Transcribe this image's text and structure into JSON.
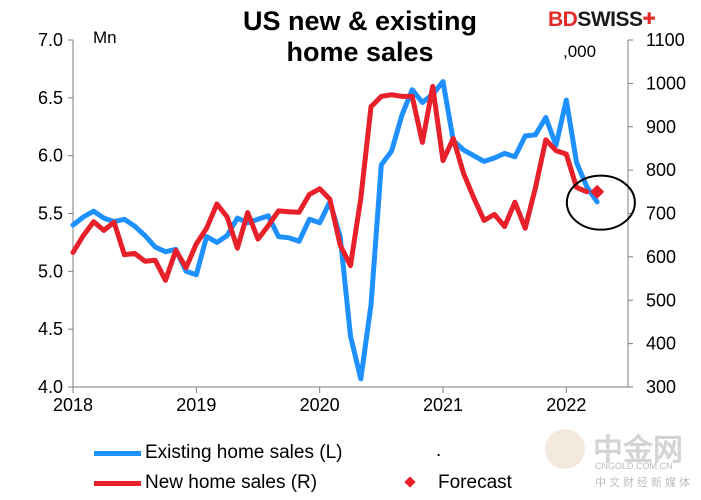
{
  "header": {
    "title_line1": "US new & existing",
    "title_line2": "home sales",
    "unit_left": "Mn",
    "unit_right": ",000"
  },
  "brand": {
    "part1": "BD",
    "part2": "SWISS",
    "mark": "✚"
  },
  "watermark": {
    "name": "中金网",
    "url": "CNGOLD.COM.CN",
    "sub": "中文财经新媒体"
  },
  "colors": {
    "existing": "#1e90ff",
    "new": "#e8202a",
    "forecast": "#e8202a",
    "axis": "#7f7f7f"
  },
  "legend": {
    "existing": "Existing home sales (L)",
    "dot": ".",
    "new": "New home sales (R)",
    "forecast": "Forecast"
  },
  "chart_data": {
    "type": "line",
    "title": "US new & existing home sales",
    "x_range": [
      2018.0,
      2022.5
    ],
    "x_ticks": [
      {
        "value": 2018,
        "label": "2018"
      },
      {
        "value": 2019,
        "label": "2019"
      },
      {
        "value": 2020,
        "label": "2020"
      },
      {
        "value": 2021,
        "label": "2021"
      },
      {
        "value": 2022,
        "label": "2022"
      }
    ],
    "y_left": {
      "label": "Mn",
      "range": [
        4.0,
        7.0
      ],
      "ticks": [
        "4.0",
        "4.5",
        "5.0",
        "5.5",
        "6.0",
        "6.5",
        "7.0"
      ]
    },
    "y_right": {
      "label": ",000",
      "range": [
        300,
        1100
      ],
      "ticks": [
        "300",
        "400",
        "500",
        "600",
        "700",
        "800",
        "900",
        "1000",
        "1100"
      ]
    },
    "series": [
      {
        "name": "Existing home sales (L)",
        "axis": "left",
        "start": 2018.0,
        "step": 0.08333,
        "values": [
          5.4,
          5.47,
          5.52,
          5.46,
          5.43,
          5.45,
          5.39,
          5.31,
          5.21,
          5.17,
          5.19,
          5.0,
          4.97,
          5.3,
          5.25,
          5.31,
          5.46,
          5.42,
          5.45,
          5.48,
          5.3,
          5.29,
          5.26,
          5.45,
          5.42,
          5.6,
          5.3,
          4.44,
          4.07,
          4.71,
          5.92,
          6.04,
          6.35,
          6.57,
          6.46,
          6.53,
          6.64,
          6.13,
          6.05,
          6.0,
          5.95,
          5.98,
          6.02,
          5.99,
          6.17,
          6.18,
          6.33,
          6.09,
          6.48,
          5.94,
          5.73,
          5.6
        ]
      },
      {
        "name": "New home sales (R)",
        "axis": "right",
        "start": 2018.0,
        "step": 0.08333,
        "values": [
          610,
          649,
          681,
          661,
          680,
          605,
          608,
          590,
          592,
          546,
          615,
          575,
          630,
          666,
          722,
          692,
          620,
          702,
          641,
          672,
          706,
          704,
          703,
          744,
          757,
          733,
          627,
          580,
          735,
          946,
          970,
          974,
          970,
          970,
          864,
          993,
          822,
          873,
          793,
          736,
          684,
          698,
          670,
          726,
          666,
          760,
          870,
          845,
          837,
          760,
          750
        ]
      },
      {
        "name": "Forecast",
        "axis": "right",
        "type": "marker",
        "points": [
          {
            "x": 2022.25,
            "y": 750
          }
        ]
      }
    ],
    "annotations": [
      {
        "type": "circle",
        "x": 2022.28,
        "y_right": 725,
        "label": "Forecast highlight"
      }
    ],
    "legend_position": "bottom"
  }
}
